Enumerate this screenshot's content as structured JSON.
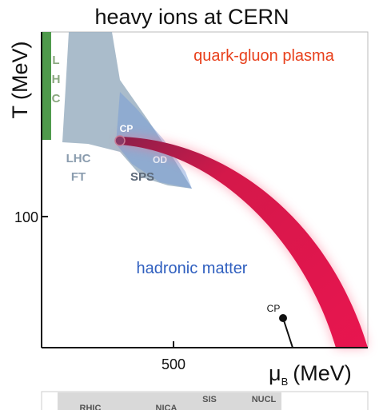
{
  "header": {
    "title": "heavy ions at CERN"
  },
  "axes": {
    "y_label": "T (MeV)",
    "y_tick": "100",
    "x_tick": "500",
    "x_label_symbol": "μ",
    "x_label_sub": "B",
    "x_label_unit": "(MeV)"
  },
  "regions": {
    "qgp": "quark-gluon plasma",
    "hadronic": "hadronic matter",
    "lhc": [
      "L",
      "H",
      "C"
    ],
    "lhc_ft": [
      "LHC",
      "FT"
    ],
    "sps": "SPS",
    "od": "OD"
  },
  "points": {
    "cp_upper": "CP",
    "cp_lower": "CP"
  },
  "footer": {
    "labels": [
      "RHIC",
      "NICA",
      "SIS",
      "NUCL"
    ]
  }
}
